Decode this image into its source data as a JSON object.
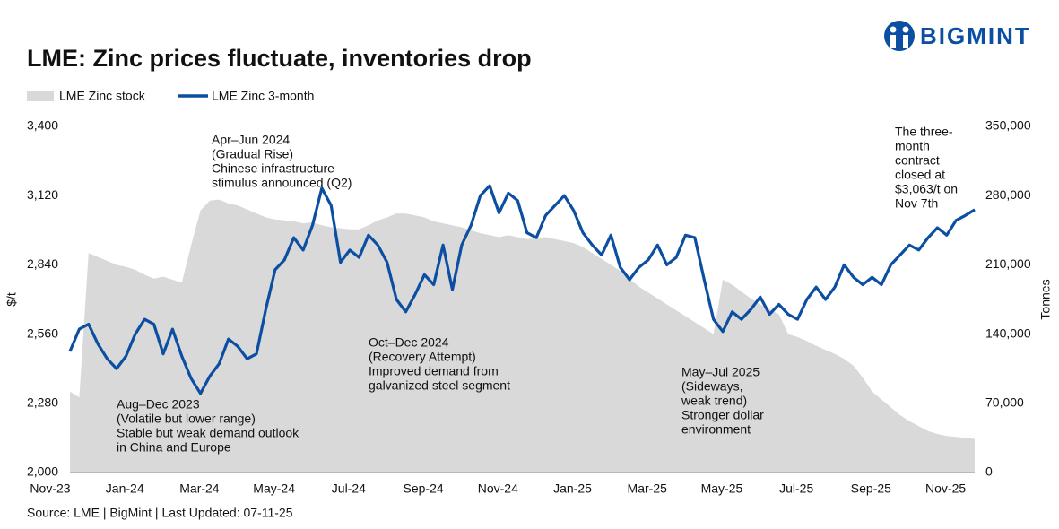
{
  "brand": "BIGMINT",
  "chart_data": {
    "type": "line-area",
    "title": "LME: Zinc prices fluctuate, inventories drop",
    "ylabel": "$/t",
    "y2label": "Tonnes",
    "source": "Source: LME | BigMint | Last Updated: 07-11-25",
    "categories": [
      "Nov-23",
      null,
      null,
      null,
      null,
      null,
      null,
      null,
      "Jan-24",
      null,
      null,
      null,
      null,
      null,
      null,
      null,
      "Mar-24",
      null,
      null,
      null,
      null,
      null,
      null,
      null,
      "May-24",
      null,
      null,
      null,
      null,
      null,
      null,
      null,
      "Jul-24",
      null,
      null,
      null,
      null,
      null,
      null,
      null,
      "Sep-24",
      null,
      null,
      null,
      null,
      null,
      null,
      null,
      "Nov-24",
      null,
      null,
      null,
      null,
      null,
      null,
      null,
      "Jan-25",
      null,
      null,
      null,
      null,
      null,
      null,
      null,
      "Mar-25",
      null,
      null,
      null,
      null,
      null,
      null,
      null,
      "May-25",
      null,
      null,
      null,
      null,
      null,
      null,
      null,
      "Jul-25",
      null,
      null,
      null,
      null,
      null,
      null,
      null,
      "Sep-25",
      null,
      null,
      null,
      null,
      null,
      null,
      null,
      "Nov-25",
      null
    ],
    "series": [
      {
        "name": "LME Zinc stock",
        "color": "#d9d9d9",
        "axis": "y2",
        "kind": "area",
        "values": [
          82000,
          76000,
          222000,
          218000,
          214000,
          210000,
          208000,
          205000,
          200000,
          196000,
          198000,
          195000,
          192000,
          230000,
          265000,
          275000,
          276000,
          272000,
          270000,
          266000,
          262000,
          258000,
          256000,
          255000,
          254000,
          252000,
          253000,
          250000,
          248000,
          247000,
          246000,
          246000,
          250000,
          255000,
          258000,
          262000,
          262000,
          260000,
          258000,
          254000,
          252000,
          250000,
          248000,
          245000,
          242000,
          240000,
          238000,
          240000,
          238000,
          236000,
          237000,
          238000,
          236000,
          234000,
          232000,
          228000,
          222000,
          216000,
          210000,
          204000,
          196000,
          188000,
          182000,
          176000,
          170000,
          164000,
          158000,
          152000,
          146000,
          140000,
          195000,
          190000,
          183000,
          176000,
          170000,
          165000,
          160000,
          140000,
          137000,
          133000,
          128000,
          124000,
          120000,
          115000,
          108000,
          96000,
          82000,
          74000,
          66000,
          58000,
          52000,
          47000,
          42000,
          39000,
          37000,
          36000,
          35000,
          34000
        ]
      },
      {
        "name": "LME Zinc 3-month",
        "color": "#0b4ea2",
        "axis": "y",
        "kind": "line",
        "values": [
          2490,
          2580,
          2600,
          2520,
          2460,
          2420,
          2470,
          2560,
          2620,
          2600,
          2480,
          2580,
          2470,
          2380,
          2320,
          2390,
          2440,
          2540,
          2510,
          2460,
          2480,
          2660,
          2820,
          2860,
          2950,
          2900,
          3000,
          3150,
          3080,
          2850,
          2900,
          2870,
          2960,
          2920,
          2850,
          2700,
          2650,
          2720,
          2800,
          2760,
          2920,
          2740,
          2920,
          3000,
          3120,
          3160,
          3050,
          3130,
          3100,
          2970,
          2950,
          3040,
          3080,
          3120,
          3060,
          2970,
          2920,
          2880,
          2960,
          2830,
          2780,
          2830,
          2860,
          2920,
          2840,
          2870,
          2960,
          2950,
          2780,
          2620,
          2570,
          2650,
          2620,
          2660,
          2710,
          2640,
          2680,
          2640,
          2620,
          2700,
          2750,
          2700,
          2750,
          2840,
          2790,
          2760,
          2790,
          2760,
          2840,
          2880,
          2920,
          2900,
          2950,
          2990,
          2960,
          3020,
          3040,
          3063
        ]
      }
    ],
    "ylim": [
      2000,
      3400
    ],
    "yticks": [
      {
        "value": 2000,
        "label": "2,000"
      },
      {
        "value": 2280,
        "label": "2,280"
      },
      {
        "value": 2560,
        "label": "2,560"
      },
      {
        "value": 2840,
        "label": "2,840"
      },
      {
        "value": 3120,
        "label": "3,120"
      },
      {
        "value": 3400,
        "label": "3,400"
      }
    ],
    "y2lim": [
      0,
      350000
    ],
    "y2ticks": [
      0,
      {
        "value": 70000,
        "label": "70,000"
      },
      {
        "value": 140000,
        "label": "140,000"
      },
      {
        "value": 210000,
        "label": "210,000"
      },
      {
        "value": 280000,
        "label": "280,000"
      },
      {
        "value": 350000,
        "label": "350,000"
      }
    ],
    "legend": "top-left",
    "annotations": [
      {
        "lines": [
          "Aug–Dec 2023",
          "(Volatile but lower range)",
          "Stable but weak demand outlook",
          "in China and Europe"
        ]
      },
      {
        "lines": [
          "Apr–Jun 2024",
          "(Gradual Rise)",
          "Chinese infrastructure",
          "stimulus announced (Q2)"
        ]
      },
      {
        "lines": [
          "Oct–Dec 2024",
          "(Recovery Attempt)",
          "Improved demand from",
          "galvanized steel segment"
        ]
      },
      {
        "lines": [
          "May–Jul 2025",
          "(Sideways,",
          "weak trend)",
          "Stronger dollar",
          "environment"
        ]
      },
      {
        "lines": [
          "The three-",
          "month",
          "contract",
          "closed at",
          "$3,063/t on",
          "Nov 7th"
        ]
      }
    ]
  }
}
